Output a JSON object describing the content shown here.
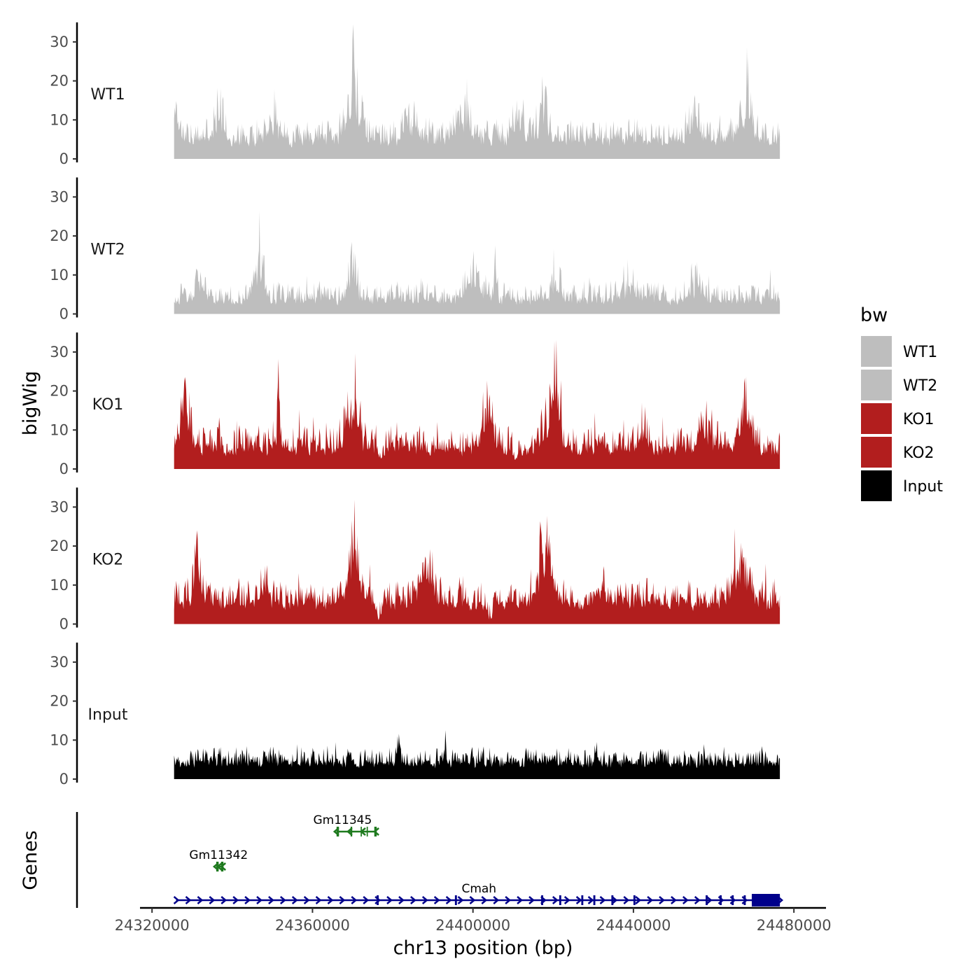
{
  "chart_data": {
    "type": "area",
    "ylabel": "bigWig",
    "genes_label": "Genes",
    "xlabel": "chr13 position (bp)",
    "xlim": [
      24317000,
      24488000
    ],
    "data_range": [
      24325500,
      24476500
    ],
    "ylim": [
      0,
      35
    ],
    "y_ticks": [
      0,
      10,
      20,
      30
    ],
    "x_ticks": [
      24320000,
      24360000,
      24400000,
      24440000,
      24480000
    ],
    "x_tick_labels": [
      "24320000",
      "24360000",
      "24400000",
      "24440000",
      "24480000"
    ],
    "legend": {
      "title": "bw",
      "entries": [
        {
          "label": "WT1",
          "color": "#bebebe"
        },
        {
          "label": "WT2",
          "color": "#bebebe"
        },
        {
          "label": "KO1",
          "color": "#b21e1e"
        },
        {
          "label": "KO2",
          "color": "#b21e1e"
        },
        {
          "label": "Input",
          "color": "#000000"
        }
      ]
    },
    "tracks": [
      {
        "name": "WT1",
        "color": "#bebebe",
        "seed": 11,
        "base": 5,
        "noise": 7,
        "peaks": [
          [
            24326000,
            8,
            700
          ],
          [
            24336500,
            6,
            1500
          ],
          [
            24350000,
            5,
            1500
          ],
          [
            24370000,
            12,
            2000
          ],
          [
            24370200,
            8,
            400
          ],
          [
            24385000,
            4,
            2000
          ],
          [
            24397500,
            6,
            2000
          ],
          [
            24411000,
            6,
            1500
          ],
          [
            24417500,
            7,
            1500
          ],
          [
            24455000,
            3,
            2000
          ],
          [
            24468000,
            7,
            1800
          ],
          [
            24468200,
            5,
            400
          ]
        ]
      },
      {
        "name": "WT2",
        "color": "#bebebe",
        "seed": 23,
        "base": 3.5,
        "noise": 6,
        "peaks": [
          [
            24332000,
            5,
            1500
          ],
          [
            24346500,
            7,
            1500
          ],
          [
            24346600,
            6,
            300
          ],
          [
            24370000,
            5,
            1500
          ],
          [
            24400000,
            6,
            2000
          ],
          [
            24405500,
            9,
            400
          ],
          [
            24420500,
            4,
            1500
          ],
          [
            24439000,
            3,
            2000
          ],
          [
            24455000,
            3,
            2000
          ]
        ]
      },
      {
        "name": "KO1",
        "color": "#b21e1e",
        "seed": 37,
        "base": 5,
        "noise": 8,
        "peaks": [
          [
            24328500,
            7,
            2000
          ],
          [
            24351500,
            12,
            400
          ],
          [
            24370000,
            10,
            2000
          ],
          [
            24403500,
            7,
            2000
          ],
          [
            24420000,
            9,
            2500
          ],
          [
            24420300,
            9,
            400
          ],
          [
            24442500,
            3,
            2000
          ],
          [
            24458000,
            4,
            2000
          ],
          [
            24468000,
            8,
            2000
          ]
        ],
        "dips": [
          [
            24377000,
            2.5,
            800
          ],
          [
            24410500,
            2,
            700
          ],
          [
            24478000,
            2,
            600
          ]
        ]
      },
      {
        "name": "KO2",
        "color": "#b21e1e",
        "seed": 53,
        "base": 5.5,
        "noise": 8,
        "peaks": [
          [
            24331500,
            7,
            1500
          ],
          [
            24331100,
            20,
            250
          ],
          [
            24348000,
            3,
            1500
          ],
          [
            24370000,
            9,
            2000
          ],
          [
            24388500,
            7,
            2000
          ],
          [
            24418000,
            10,
            2500
          ],
          [
            24418500,
            6,
            400
          ],
          [
            24432000,
            4,
            1500
          ],
          [
            24466500,
            8,
            2500
          ]
        ],
        "dips": [
          [
            24376500,
            4.5,
            700
          ],
          [
            24404000,
            4.5,
            1100
          ],
          [
            24426000,
            2,
            700
          ]
        ]
      },
      {
        "name": "Input",
        "color": "#000000",
        "seed": 71,
        "base": 4.5,
        "noise": 5,
        "peaks": [
          [
            24381500,
            5,
            400
          ],
          [
            24393000,
            4,
            250
          ],
          [
            24430500,
            3,
            300
          ]
        ]
      }
    ],
    "genes": [
      {
        "name": "Gm11345",
        "strand": "-",
        "row": 0,
        "color": "#1f7a1f",
        "start": 24366000,
        "end": 24376000,
        "label_x": 24367500,
        "exons": [
          [
            24366000,
            24366600
          ],
          [
            24369500,
            24369900
          ],
          [
            24372000,
            24372300
          ],
          [
            24373500,
            24373800
          ],
          [
            24375400,
            24376000
          ]
        ]
      },
      {
        "name": "Gm11342",
        "strand": "-",
        "row": 1,
        "color": "#1f7a1f",
        "start": 24336000,
        "end": 24337800,
        "label_x": 24336600,
        "exons": [
          [
            24336000,
            24336600
          ],
          [
            24337200,
            24337800
          ]
        ]
      },
      {
        "name": "Cmah",
        "strand": "+",
        "row": 2,
        "color": "#00008b",
        "start": 24326000,
        "end": 24476500,
        "label_x": 24401500,
        "exons": [
          [
            24376000,
            24376500
          ],
          [
            24395500,
            24396000
          ],
          [
            24417000,
            24417500
          ],
          [
            24421500,
            24422000
          ],
          [
            24427000,
            24427500
          ],
          [
            24430000,
            24430500
          ],
          [
            24434500,
            24435000
          ],
          [
            24440000,
            24440500
          ],
          [
            24458000,
            24458500
          ],
          [
            24461500,
            24462000
          ],
          [
            24464500,
            24465000
          ],
          [
            24467500,
            24468000
          ],
          [
            24469500,
            24476500
          ]
        ],
        "thick_exon": [
          24469500,
          24476500
        ]
      }
    ]
  }
}
